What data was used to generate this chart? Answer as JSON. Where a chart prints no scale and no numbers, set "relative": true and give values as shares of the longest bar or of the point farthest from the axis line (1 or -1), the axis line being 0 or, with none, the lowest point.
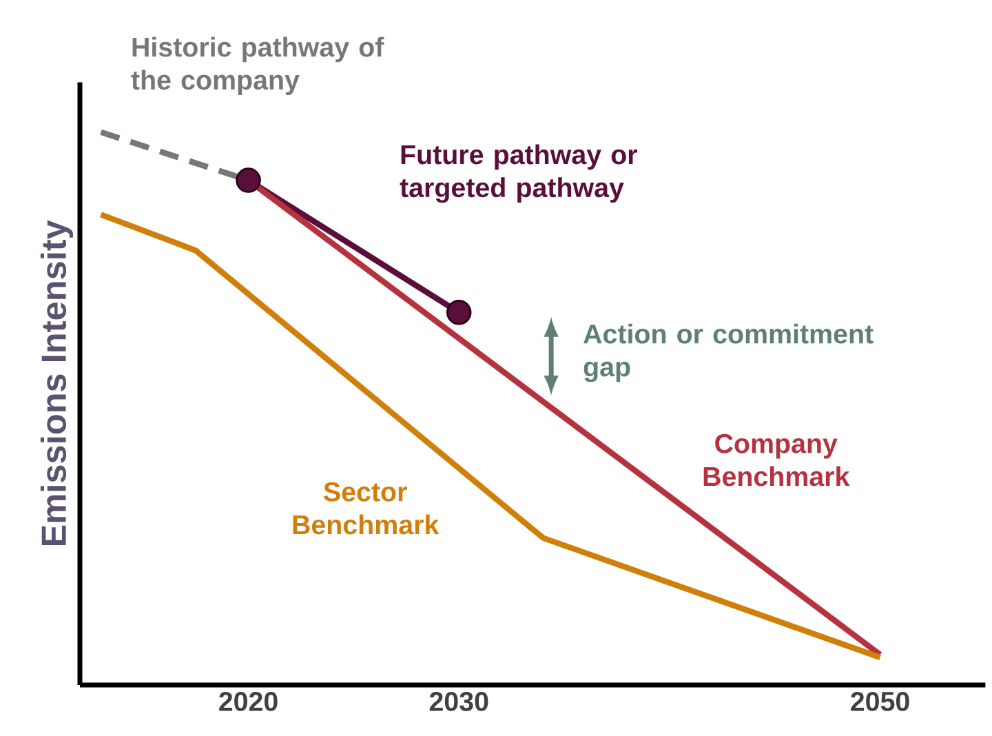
{
  "chart_data": {
    "type": "line",
    "relative": true,
    "ylabel": "Emissions Intensity",
    "xlim": [
      2012,
      2055
    ],
    "xticks": [
      2020,
      2030,
      2050
    ],
    "annotations": [
      "Action or commitment gap"
    ],
    "series": [
      {
        "name": "Historic pathway of the company",
        "color": "#777777",
        "line_style": "dashed",
        "marker": "none",
        "x": [
          2013,
          2020
        ],
        "values": [
          1.0,
          0.913
        ]
      },
      {
        "name": "Future pathway or targeted pathway",
        "color": "#5a0f3a",
        "line_style": "solid",
        "marker": "circle",
        "x": [
          2020,
          2030
        ],
        "values": [
          0.913,
          0.674
        ]
      },
      {
        "name": "Company Benchmark",
        "color": "#b5323e",
        "line_style": "solid",
        "marker": "none",
        "x": [
          2020,
          2050
        ],
        "values": [
          0.913,
          0.055
        ]
      },
      {
        "name": "Sector Benchmark",
        "color": "#d07f0a",
        "line_style": "solid",
        "marker": "none",
        "x": [
          2013,
          2017.5,
          2034,
          2050
        ],
        "values": [
          0.851,
          0.786,
          0.266,
          0.05
        ]
      }
    ]
  }
}
